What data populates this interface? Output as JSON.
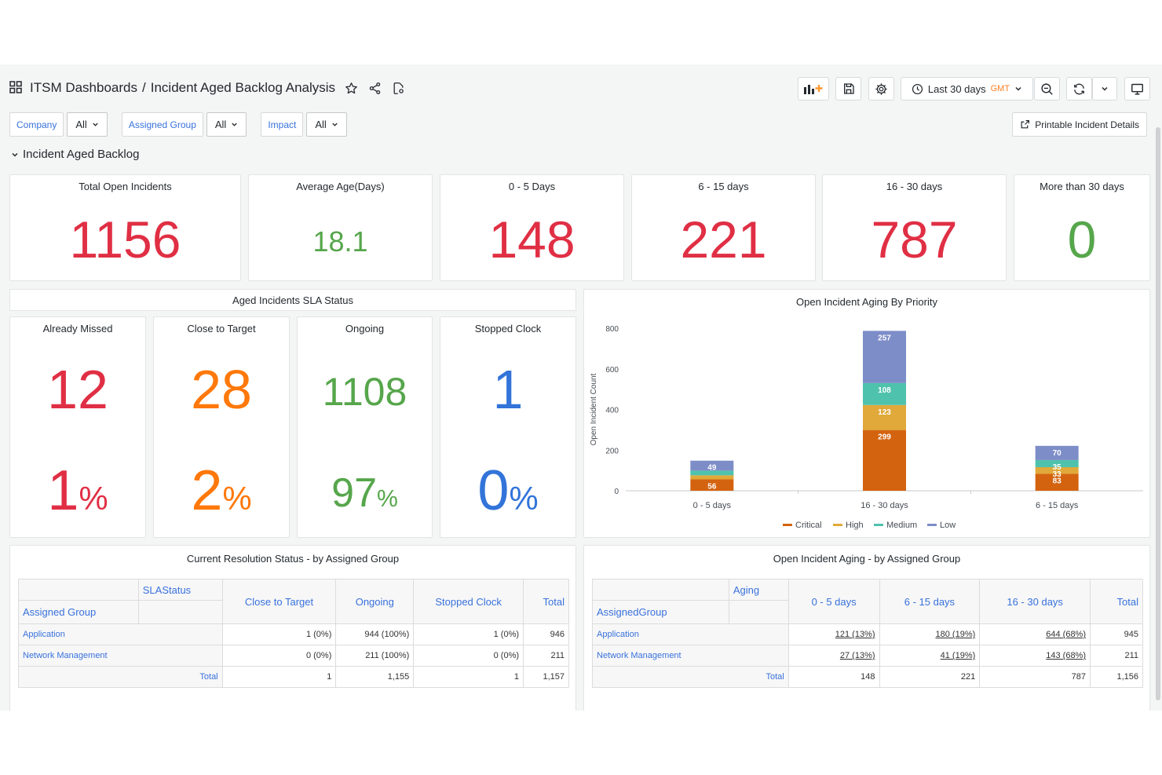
{
  "header": {
    "breadcrumb_root": "ITSM Dashboards",
    "breadcrumb_separator": "/",
    "dashboard_title": "Incident Aged Backlog Analysis",
    "time_range": "Last 30 days",
    "timezone": "GMT"
  },
  "filters": [
    {
      "label": "Company",
      "value": "All"
    },
    {
      "label": "Assigned Group",
      "value": "All"
    },
    {
      "label": "Impact",
      "value": "All"
    }
  ],
  "print_button": "Printable Incident Details",
  "row_title": "Incident Aged Backlog",
  "stats": [
    {
      "title": "Total Open Incidents",
      "value": "1156",
      "color": "#e02f44"
    },
    {
      "title": "Average Age(Days)",
      "value": "18.1",
      "color": "#56a64b"
    },
    {
      "title": "0 - 5 Days",
      "value": "148",
      "color": "#e02f44"
    },
    {
      "title": "6 - 15 days",
      "value": "221",
      "color": "#e02f44"
    },
    {
      "title": "16 - 30 days",
      "value": "787",
      "color": "#e02f44"
    },
    {
      "title": "More than 30 days",
      "value": "0",
      "color": "#56a64b"
    }
  ],
  "sla": {
    "title": "Aged Incidents SLA Status",
    "cards": [
      {
        "title": "Already Missed",
        "count": "12",
        "pct": "1",
        "unit": "%",
        "color": "#e02f44"
      },
      {
        "title": "Close to Target",
        "count": "28",
        "pct": "2",
        "unit": "%",
        "color": "#ff780a"
      },
      {
        "title": "Ongoing",
        "count": "1108",
        "pct": "97",
        "unit": "%",
        "color": "#56a64b"
      },
      {
        "title": "Stopped Clock",
        "count": "1",
        "pct": "0",
        "unit": "%",
        "color": "#3274d9"
      }
    ]
  },
  "chart_title": "Open Incident Aging By Priority",
  "chart_data": {
    "type": "bar",
    "stacked": true,
    "categories": [
      "0 - 5 days",
      "16 - 30 days",
      "6 - 15 days"
    ],
    "ylabel": "Open Incident Count",
    "ylim": [
      0,
      800
    ],
    "yticks": [
      0,
      200,
      400,
      600,
      800
    ],
    "series": [
      {
        "name": "Critical",
        "color": "#d4630f",
        "values": [
          56,
          299,
          83
        ]
      },
      {
        "name": "High",
        "color": "#e0a93a",
        "values": [
          20,
          123,
          33
        ]
      },
      {
        "name": "Medium",
        "color": "#4fc2ad",
        "values": [
          23,
          108,
          35
        ]
      },
      {
        "name": "Low",
        "color": "#7d8dc8",
        "values": [
          49,
          257,
          70
        ]
      }
    ],
    "value_labels": [
      [
        "56",
        null,
        null,
        "49"
      ],
      [
        "299",
        "123",
        "108",
        "257"
      ],
      [
        "83",
        "33",
        "35",
        "70"
      ]
    ],
    "legend_position": "bottom"
  },
  "table1": {
    "title": "Current Resolution Status - by Assigned Group",
    "pivot_label": "SLAStatus",
    "row_header": "Assigned Group",
    "columns": [
      "Close to Target",
      "Ongoing",
      "Stopped Clock",
      "Total"
    ],
    "rows": [
      {
        "label": "Application",
        "cells": [
          "1 (0%)",
          "944 (100%)",
          "1 (0%)",
          "946"
        ]
      },
      {
        "label": "Network Management",
        "cells": [
          "0 (0%)",
          "211 (100%)",
          "0 (0%)",
          "211"
        ]
      }
    ],
    "total": {
      "label": "Total",
      "cells": [
        "1",
        "1,155",
        "1",
        "1,157"
      ]
    }
  },
  "table2": {
    "title": "Open Incident Aging - by Assigned Group",
    "pivot_label": "Aging",
    "row_header": "AssignedGroup",
    "columns": [
      "0 - 5 days",
      "6 - 15 days",
      "16 - 30 days",
      "Total"
    ],
    "rows": [
      {
        "label": "Application",
        "cells": [
          "121 (13%)",
          "180 (19%)",
          "644 (68%)",
          "945"
        ]
      },
      {
        "label": "Network Management",
        "cells": [
          "27 (13%)",
          "41 (19%)",
          "143 (68%)",
          "211"
        ]
      }
    ],
    "total": {
      "label": "Total",
      "cells": [
        "148",
        "221",
        "787",
        "1,156"
      ]
    }
  }
}
